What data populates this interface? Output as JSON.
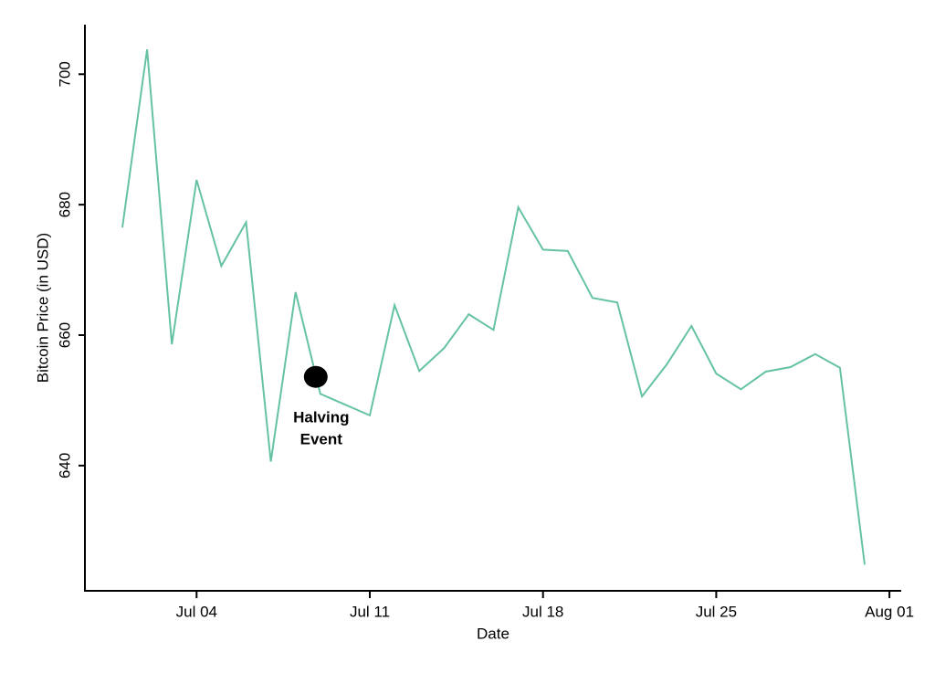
{
  "chart_data": {
    "type": "line",
    "x_label": "Date",
    "y_label": "Bitcoin Price (in USD)",
    "x": [
      "Jul 01",
      "Jul 02",
      "Jul 03",
      "Jul 04",
      "Jul 05",
      "Jul 06",
      "Jul 07",
      "Jul 08",
      "Jul 09",
      "Jul 11",
      "Jul 12",
      "Jul 13",
      "Jul 14",
      "Jul 15",
      "Jul 16",
      "Jul 17",
      "Jul 18",
      "Jul 19",
      "Jul 20",
      "Jul 21",
      "Jul 22",
      "Jul 23",
      "Jul 24",
      "Jul 25",
      "Jul 26",
      "Jul 27",
      "Jul 28",
      "Jul 29",
      "Jul 30",
      "Jul 31"
    ],
    "series": [
      {
        "color": "#66c2a5",
        "values": [
          676.5,
          703.8,
          658.6,
          683.8,
          670.6,
          677.3,
          640.6,
          666.6,
          651.0,
          647.7,
          664.6,
          654.5,
          658.0,
          663.2,
          660.8,
          679.6,
          673.1,
          672.9,
          665.7,
          665.0,
          650.6,
          655.5,
          661.4,
          654.1,
          651.7,
          654.4,
          655.1,
          657.1,
          655.0,
          624.8
        ]
      }
    ],
    "ylim": [
      620.8,
      707.6
    ],
    "yticks": [
      640,
      660,
      680,
      700
    ],
    "xticks": [
      "Jul 04",
      "Jul 11",
      "Jul 18",
      "Jul 25",
      "Aug 01"
    ],
    "annotation": {
      "x": "Jul 09",
      "y": 653.6,
      "text": [
        "Halving",
        "Event"
      ],
      "color": "#000000"
    }
  }
}
